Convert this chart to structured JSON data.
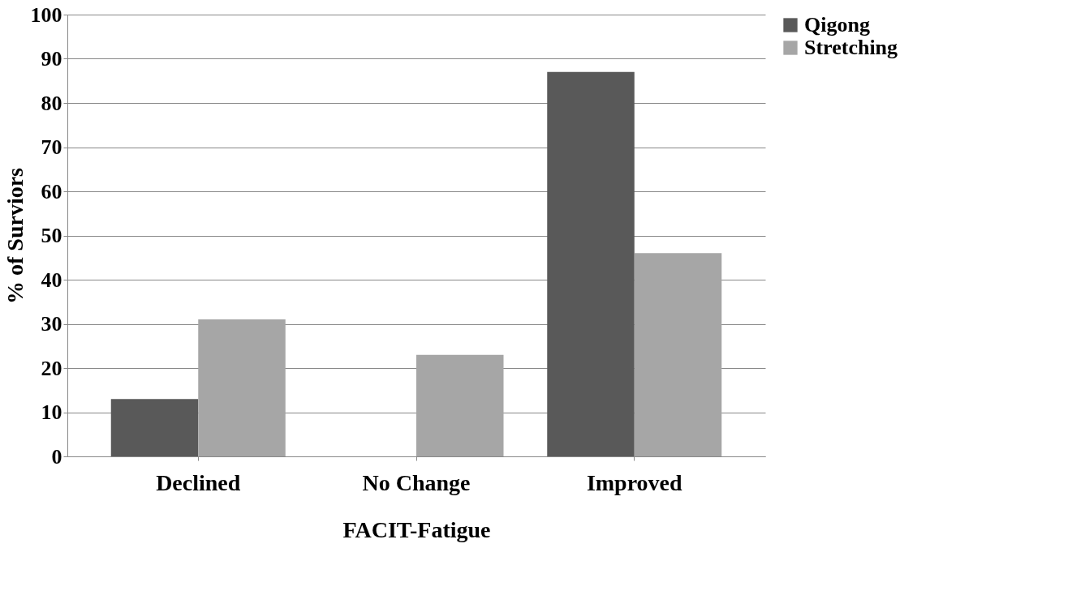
{
  "chart_data": {
    "type": "bar",
    "xlabel": "FACIT-Fatigue",
    "ylabel": "% of Surviors",
    "categories": [
      "Declined",
      "No Change",
      "Improved"
    ],
    "series": [
      {
        "name": "Qigong",
        "color": "#595959",
        "values": [
          13,
          0,
          87
        ]
      },
      {
        "name": "Stretching",
        "color": "#a6a6a6",
        "values": [
          31,
          23,
          46
        ]
      }
    ],
    "ylim": [
      0,
      100
    ],
    "yticks": [
      0,
      10,
      20,
      30,
      40,
      50,
      60,
      70,
      80,
      90,
      100
    ],
    "grid": "y",
    "legend": "right"
  }
}
